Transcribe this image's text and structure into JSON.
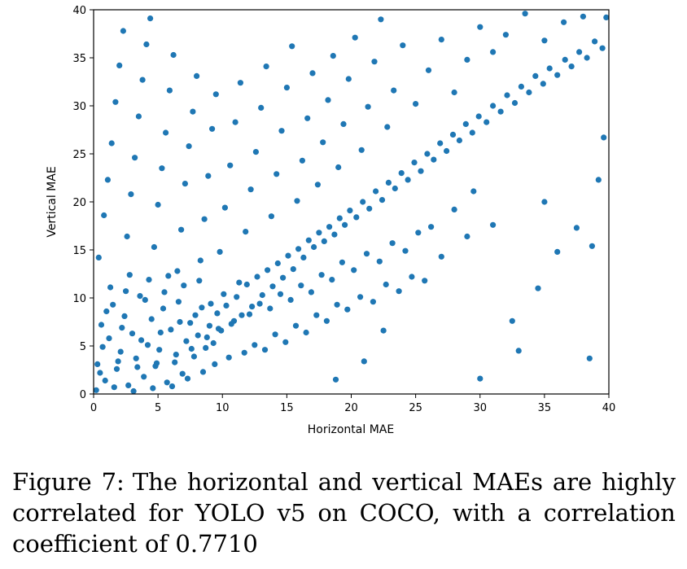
{
  "chart_data": {
    "type": "scatter",
    "title": "",
    "xlabel": "Horizontal MAE",
    "ylabel": "Vertical MAE",
    "xlim": [
      0,
      40
    ],
    "ylim": [
      0,
      40
    ],
    "xticks": [
      0,
      5,
      10,
      15,
      20,
      25,
      30,
      35,
      40
    ],
    "yticks": [
      0,
      5,
      10,
      15,
      20,
      25,
      30,
      35,
      40
    ],
    "marker_color": "#1f77b4",
    "grid": false,
    "series": [
      {
        "name": "YOLO v5 on COCO",
        "points": [
          [
            0.3,
            3.1
          ],
          [
            0.6,
            7.2
          ],
          [
            0.9,
            1.4
          ],
          [
            1.2,
            5.8
          ],
          [
            1.5,
            9.3
          ],
          [
            1.8,
            2.6
          ],
          [
            2.1,
            4.4
          ],
          [
            2.4,
            8.1
          ],
          [
            2.7,
            0.9
          ],
          [
            3.0,
            6.3
          ],
          [
            3.3,
            3.7
          ],
          [
            3.6,
            10.2
          ],
          [
            3.9,
            1.8
          ],
          [
            4.2,
            5.1
          ],
          [
            4.5,
            7.8
          ],
          [
            4.8,
            2.9
          ],
          [
            5.1,
            4.6
          ],
          [
            5.4,
            8.9
          ],
          [
            5.7,
            1.2
          ],
          [
            6.0,
            6.7
          ],
          [
            6.3,
            3.3
          ],
          [
            6.6,
            9.6
          ],
          [
            6.9,
            2.1
          ],
          [
            7.2,
            5.5
          ],
          [
            7.5,
            7.4
          ],
          [
            7.8,
            3.9
          ],
          [
            8.1,
            6.1
          ],
          [
            8.4,
            9.0
          ],
          [
            8.7,
            4.8
          ],
          [
            9.0,
            7.1
          ],
          [
            9.3,
            5.3
          ],
          [
            9.6,
            8.4
          ],
          [
            9.9,
            6.6
          ],
          [
            10.3,
            9.2
          ],
          [
            10.7,
            7.3
          ],
          [
            11.1,
            10.1
          ],
          [
            11.5,
            8.2
          ],
          [
            11.9,
            11.4
          ],
          [
            12.3,
            9.1
          ],
          [
            12.7,
            12.2
          ],
          [
            13.1,
            10.3
          ],
          [
            13.5,
            12.9
          ],
          [
            13.9,
            11.2
          ],
          [
            14.3,
            13.6
          ],
          [
            14.7,
            12.1
          ],
          [
            15.1,
            14.4
          ],
          [
            15.5,
            13.0
          ],
          [
            15.9,
            15.1
          ],
          [
            16.3,
            14.2
          ],
          [
            16.7,
            16.0
          ],
          [
            17.1,
            15.3
          ],
          [
            17.5,
            16.8
          ],
          [
            17.9,
            15.9
          ],
          [
            18.3,
            17.4
          ],
          [
            18.7,
            16.6
          ],
          [
            19.1,
            18.3
          ],
          [
            19.5,
            17.6
          ],
          [
            19.9,
            19.1
          ],
          [
            20.4,
            18.4
          ],
          [
            20.9,
            20.0
          ],
          [
            21.4,
            19.3
          ],
          [
            21.9,
            21.1
          ],
          [
            22.4,
            20.2
          ],
          [
            22.9,
            22.0
          ],
          [
            23.4,
            21.4
          ],
          [
            23.9,
            23.0
          ],
          [
            24.4,
            22.3
          ],
          [
            24.9,
            24.1
          ],
          [
            25.4,
            23.2
          ],
          [
            25.9,
            25.0
          ],
          [
            26.4,
            24.4
          ],
          [
            26.9,
            26.1
          ],
          [
            27.4,
            25.3
          ],
          [
            27.9,
            27.0
          ],
          [
            28.4,
            26.4
          ],
          [
            28.9,
            28.1
          ],
          [
            29.4,
            27.2
          ],
          [
            29.9,
            28.9
          ],
          [
            30.5,
            28.3
          ],
          [
            31.0,
            30.0
          ],
          [
            31.6,
            29.4
          ],
          [
            32.1,
            31.1
          ],
          [
            32.7,
            30.3
          ],
          [
            33.2,
            32.0
          ],
          [
            33.8,
            31.4
          ],
          [
            34.3,
            33.1
          ],
          [
            34.9,
            32.3
          ],
          [
            35.4,
            33.9
          ],
          [
            36.0,
            33.2
          ],
          [
            36.6,
            34.8
          ],
          [
            37.1,
            34.1
          ],
          [
            37.7,
            35.6
          ],
          [
            38.3,
            35.0
          ],
          [
            38.9,
            36.7
          ],
          [
            39.5,
            36.0
          ],
          [
            0.4,
            14.2
          ],
          [
            0.8,
            18.6
          ],
          [
            1.1,
            22.3
          ],
          [
            1.4,
            26.1
          ],
          [
            1.7,
            30.4
          ],
          [
            2.0,
            34.2
          ],
          [
            2.3,
            37.8
          ],
          [
            2.6,
            16.4
          ],
          [
            2.9,
            20.8
          ],
          [
            3.2,
            24.6
          ],
          [
            3.5,
            28.9
          ],
          [
            3.8,
            32.7
          ],
          [
            4.1,
            36.4
          ],
          [
            4.4,
            39.1
          ],
          [
            4.7,
            15.3
          ],
          [
            5.0,
            19.7
          ],
          [
            5.3,
            23.5
          ],
          [
            5.6,
            27.2
          ],
          [
            5.9,
            31.6
          ],
          [
            6.2,
            35.3
          ],
          [
            6.5,
            12.8
          ],
          [
            6.8,
            17.1
          ],
          [
            7.1,
            21.9
          ],
          [
            7.4,
            25.8
          ],
          [
            7.7,
            29.4
          ],
          [
            8.0,
            33.1
          ],
          [
            8.3,
            13.9
          ],
          [
            8.6,
            18.2
          ],
          [
            8.9,
            22.7
          ],
          [
            9.2,
            27.6
          ],
          [
            9.5,
            31.2
          ],
          [
            9.8,
            14.8
          ],
          [
            10.2,
            19.4
          ],
          [
            10.6,
            23.8
          ],
          [
            11.0,
            28.3
          ],
          [
            11.4,
            32.4
          ],
          [
            11.8,
            16.9
          ],
          [
            12.2,
            21.3
          ],
          [
            12.6,
            25.2
          ],
          [
            13.0,
            29.8
          ],
          [
            13.4,
            34.1
          ],
          [
            13.8,
            18.5
          ],
          [
            14.2,
            22.9
          ],
          [
            14.6,
            27.4
          ],
          [
            15.0,
            31.9
          ],
          [
            15.4,
            36.2
          ],
          [
            15.8,
            20.1
          ],
          [
            16.2,
            24.3
          ],
          [
            16.6,
            28.7
          ],
          [
            17.0,
            33.4
          ],
          [
            17.4,
            21.8
          ],
          [
            17.8,
            26.2
          ],
          [
            18.2,
            30.6
          ],
          [
            18.6,
            35.2
          ],
          [
            19.0,
            23.6
          ],
          [
            19.4,
            28.1
          ],
          [
            19.8,
            32.8
          ],
          [
            20.3,
            37.1
          ],
          [
            20.8,
            25.4
          ],
          [
            21.3,
            29.9
          ],
          [
            21.8,
            34.6
          ],
          [
            22.3,
            39.0
          ],
          [
            22.8,
            27.8
          ],
          [
            23.3,
            31.6
          ],
          [
            24.0,
            36.3
          ],
          [
            25.0,
            30.2
          ],
          [
            26.0,
            33.7
          ],
          [
            27.0,
            36.9
          ],
          [
            28.0,
            31.4
          ],
          [
            29.0,
            34.8
          ],
          [
            30.0,
            38.2
          ],
          [
            31.0,
            35.6
          ],
          [
            32.0,
            37.4
          ],
          [
            33.5,
            39.6
          ],
          [
            35.0,
            36.8
          ],
          [
            36.5,
            38.7
          ],
          [
            38.0,
            39.3
          ],
          [
            39.8,
            39.2
          ],
          [
            0.2,
            0.4
          ],
          [
            0.5,
            2.2
          ],
          [
            0.7,
            4.9
          ],
          [
            1.0,
            8.6
          ],
          [
            1.3,
            11.1
          ],
          [
            1.6,
            0.7
          ],
          [
            1.9,
            3.4
          ],
          [
            2.2,
            6.9
          ],
          [
            2.5,
            10.7
          ],
          [
            2.8,
            12.4
          ],
          [
            3.1,
            0.3
          ],
          [
            3.4,
            2.8
          ],
          [
            3.7,
            5.6
          ],
          [
            4.0,
            9.8
          ],
          [
            4.3,
            11.9
          ],
          [
            4.6,
            0.6
          ],
          [
            4.9,
            3.2
          ],
          [
            5.2,
            6.4
          ],
          [
            5.5,
            10.6
          ],
          [
            5.8,
            12.3
          ],
          [
            6.1,
            0.8
          ],
          [
            6.4,
            4.1
          ],
          [
            6.7,
            7.5
          ],
          [
            7.0,
            11.3
          ],
          [
            7.3,
            1.6
          ],
          [
            7.6,
            4.7
          ],
          [
            7.9,
            8.2
          ],
          [
            8.2,
            11.8
          ],
          [
            8.5,
            2.3
          ],
          [
            8.8,
            5.9
          ],
          [
            9.1,
            9.4
          ],
          [
            9.4,
            3.1
          ],
          [
            9.7,
            6.8
          ],
          [
            10.1,
            10.4
          ],
          [
            10.5,
            3.8
          ],
          [
            10.9,
            7.6
          ],
          [
            11.3,
            11.6
          ],
          [
            11.7,
            4.3
          ],
          [
            12.1,
            8.3
          ],
          [
            12.5,
            5.1
          ],
          [
            12.9,
            9.4
          ],
          [
            13.3,
            4.6
          ],
          [
            13.7,
            8.9
          ],
          [
            14.1,
            6.2
          ],
          [
            14.5,
            10.4
          ],
          [
            14.9,
            5.4
          ],
          [
            15.3,
            9.8
          ],
          [
            15.7,
            7.1
          ],
          [
            16.1,
            11.3
          ],
          [
            16.5,
            6.4
          ],
          [
            16.9,
            10.6
          ],
          [
            17.3,
            8.2
          ],
          [
            17.7,
            12.4
          ],
          [
            18.1,
            7.6
          ],
          [
            18.5,
            11.9
          ],
          [
            18.9,
            9.3
          ],
          [
            19.3,
            13.7
          ],
          [
            19.7,
            8.8
          ],
          [
            20.2,
            12.9
          ],
          [
            20.7,
            10.1
          ],
          [
            21.2,
            14.6
          ],
          [
            21.7,
            9.6
          ],
          [
            22.2,
            13.8
          ],
          [
            22.7,
            11.4
          ],
          [
            23.2,
            15.7
          ],
          [
            23.7,
            10.7
          ],
          [
            24.2,
            14.9
          ],
          [
            24.7,
            12.2
          ],
          [
            25.2,
            16.8
          ],
          [
            25.7,
            11.8
          ],
          [
            26.2,
            17.4
          ],
          [
            27.0,
            14.3
          ],
          [
            28.0,
            19.2
          ],
          [
            29.0,
            16.4
          ],
          [
            30.0,
            1.6
          ],
          [
            29.5,
            21.1
          ],
          [
            31.0,
            17.6
          ],
          [
            32.5,
            7.6
          ],
          [
            33.0,
            4.5
          ],
          [
            34.5,
            11.0
          ],
          [
            35.0,
            20.0
          ],
          [
            36.0,
            14.8
          ],
          [
            37.5,
            17.3
          ],
          [
            38.5,
            3.7
          ],
          [
            38.7,
            15.4
          ],
          [
            39.2,
            22.3
          ],
          [
            39.6,
            26.7
          ],
          [
            18.8,
            1.5
          ],
          [
            21.0,
            3.4
          ],
          [
            22.5,
            6.6
          ]
        ]
      }
    ]
  },
  "caption": {
    "label": "Figure 7:",
    "text": "The horizontal and vertical MAEs are highly correlated for YOLO v5 on COCO, with a correlation coefficient of 0.7710"
  }
}
